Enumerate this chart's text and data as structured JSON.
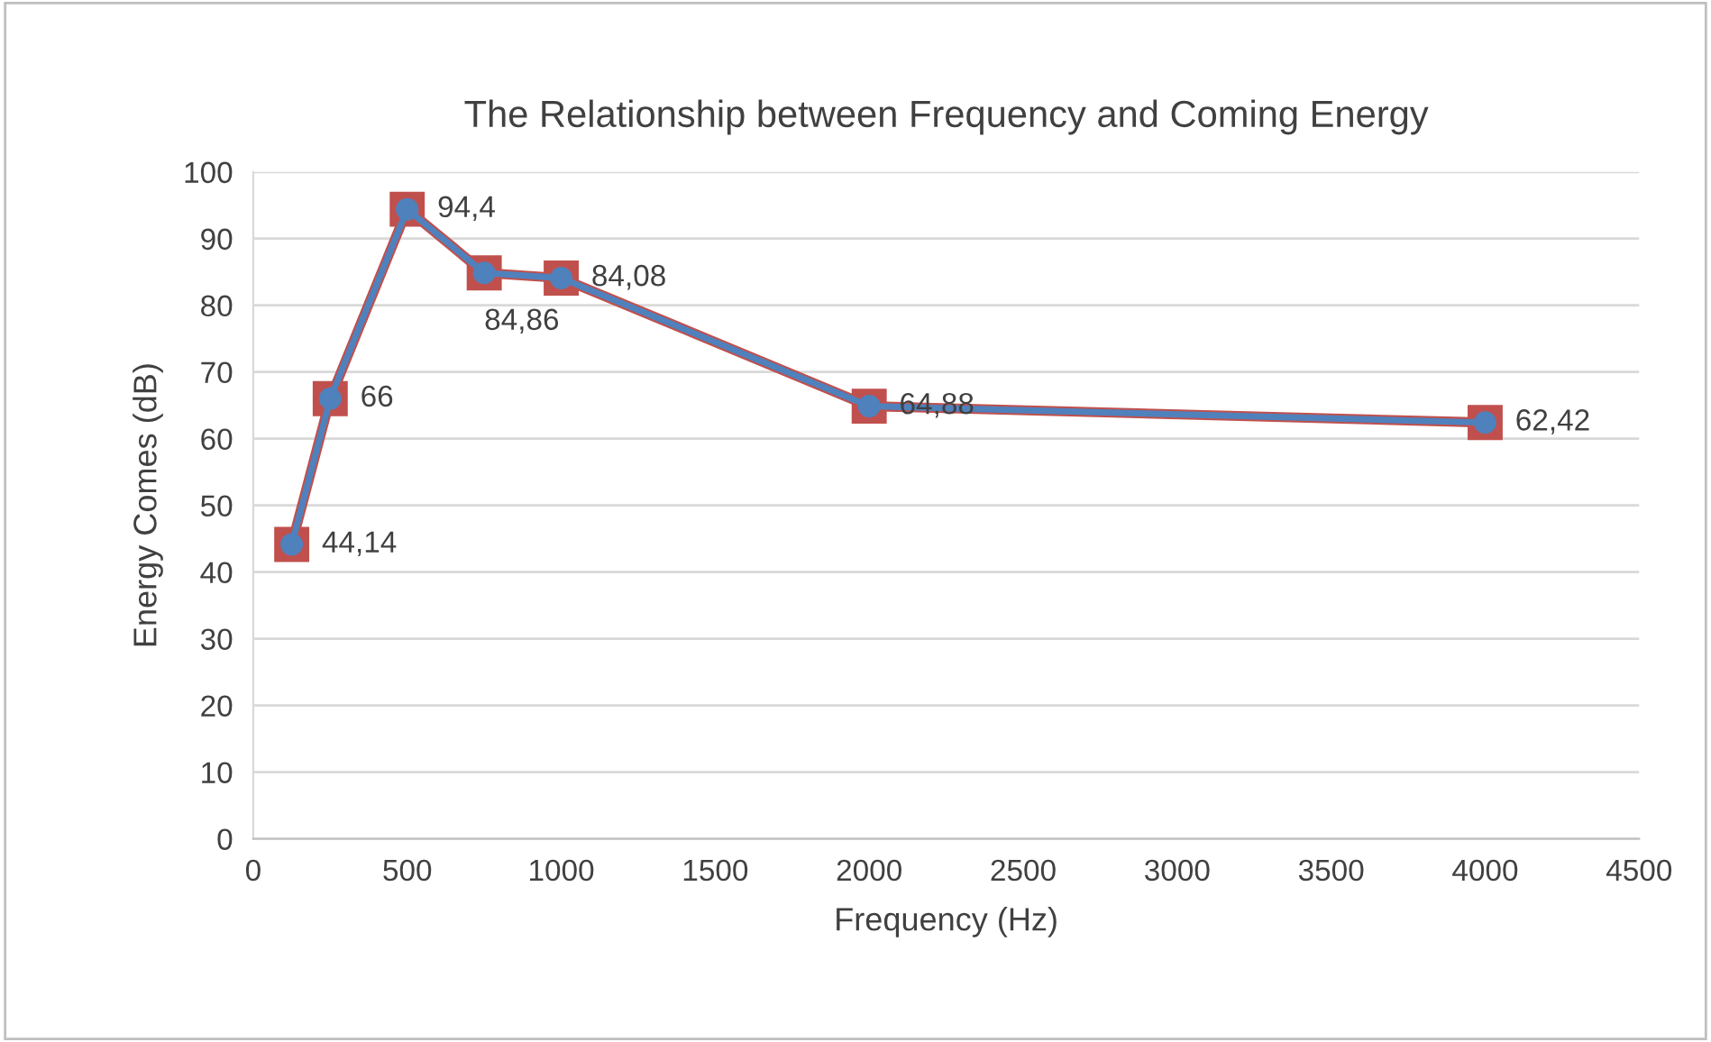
{
  "chart_data": {
    "type": "line",
    "title": "The Relationship between Frequency and Coming Energy",
    "xlabel": "Frequency (Hz)",
    "ylabel": "Energy Comes (dB)",
    "x": [
      125,
      250,
      500,
      750,
      1000,
      2000,
      4000
    ],
    "series": [
      {
        "color": "#c0504d",
        "marker": "square",
        "values": [
          44.14,
          66,
          94.4,
          84.86,
          84.08,
          64.88,
          62.42
        ]
      },
      {
        "color": "#4f81bd",
        "marker": "circle",
        "values": [
          44.14,
          66,
          94.4,
          84.86,
          84.08,
          64.88,
          62.42
        ],
        "value_labels": [
          "44,14",
          "66",
          "94,4",
          "84,86",
          "84,08",
          "64,88",
          "62,42"
        ]
      }
    ],
    "xlim": [
      0,
      4500
    ],
    "xticks": [
      0,
      500,
      1000,
      1500,
      2000,
      2500,
      3000,
      3500,
      4000,
      4500
    ],
    "ylim": [
      0,
      100
    ],
    "yticks": [
      0,
      10,
      20,
      30,
      40,
      50,
      60,
      70,
      80,
      90,
      100
    ],
    "grid": "y",
    "legend": false,
    "line_style": "solid"
  }
}
